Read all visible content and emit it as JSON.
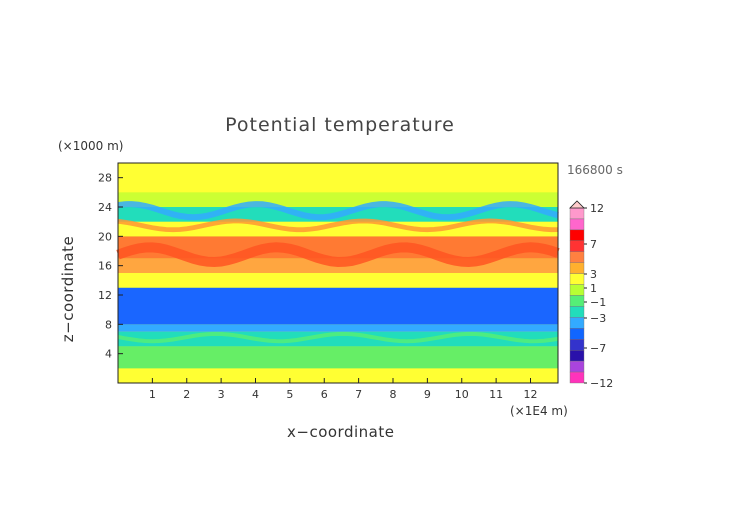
{
  "chart_data": {
    "type": "heatmap",
    "title": "Potential temperature",
    "xlabel": "x−coordinate",
    "ylabel": "z−coordinate",
    "x_unit": "(×1E4 m)",
    "y_unit": "(×1000 m)",
    "time_label": "166800 s",
    "xlim": [
      0,
      12.8
    ],
    "ylim": [
      0,
      30
    ],
    "x_ticks": [
      "1",
      "2",
      "3",
      "4",
      "5",
      "6",
      "7",
      "8",
      "9",
      "10",
      "11",
      "12"
    ],
    "y_ticks": [
      "4",
      "8",
      "12",
      "16",
      "20",
      "24",
      "28"
    ],
    "colorbar_labels": [
      "12",
      "7",
      "3",
      "1",
      "−1",
      "−3",
      "−7",
      "−12"
    ],
    "colorbar_colors": [
      "#ff99cc",
      "#ff66cc",
      "#ff0000",
      "#ff3333",
      "#ff8040",
      "#ffb02e",
      "#ffff33",
      "#b8ff33",
      "#55ee77",
      "#22ddbb",
      "#33aaff",
      "#1166ff",
      "#3333cc",
      "#2a11aa",
      "#aa44dd",
      "#ff33bb"
    ],
    "bands": [
      {
        "z_from": 0,
        "z_to": 2,
        "value": 1
      },
      {
        "z_from": 2,
        "z_to": 5,
        "value": -1
      },
      {
        "z_from": 5,
        "z_to": 7,
        "value": -2
      },
      {
        "z_from": 7,
        "z_to": 8,
        "value": -3
      },
      {
        "z_from": 8,
        "z_to": 13,
        "value": -4
      },
      {
        "z_from": 13,
        "z_to": 15,
        "value": 1
      },
      {
        "z_from": 15,
        "z_to": 17,
        "value": 3
      },
      {
        "z_from": 17,
        "z_to": 20,
        "value": 4
      },
      {
        "z_from": 20,
        "z_to": 22,
        "value": 1
      },
      {
        "z_from": 22,
        "z_to": 24,
        "value": -2
      },
      {
        "z_from": 24,
        "z_to": 26,
        "value": 0
      },
      {
        "z_from": 26,
        "z_to": 30,
        "value": 1
      }
    ]
  }
}
